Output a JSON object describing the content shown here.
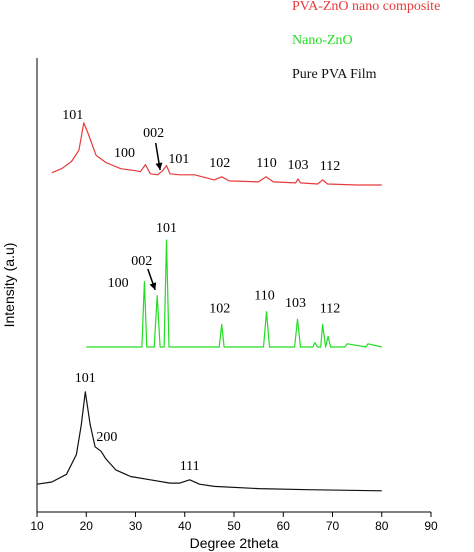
{
  "chart_data": {
    "type": "line",
    "xlabel": "Degree 2theta",
    "ylabel": "Intensity (a.u)",
    "xlim": [
      10,
      90
    ],
    "xticks": [
      "10",
      "20",
      "30",
      "40",
      "50",
      "60",
      "70",
      "80",
      "90"
    ],
    "grid": false,
    "legend_position": "top-right",
    "series": [
      {
        "name": "PVA-ZnO nano composite",
        "color": "#e83a3a",
        "x": [
          13,
          15,
          17,
          18.5,
          19.5,
          20.5,
          22,
          24,
          27,
          30,
          31,
          32,
          33,
          34.5,
          35.5,
          36.3,
          37,
          39,
          42,
          46,
          47.5,
          49,
          55,
          56.5,
          58,
          62.5,
          63,
          63.5,
          67,
          68,
          69,
          75,
          80
        ],
        "y": [
          0.13,
          0.17,
          0.24,
          0.35,
          0.62,
          0.5,
          0.3,
          0.23,
          0.17,
          0.15,
          0.14,
          0.21,
          0.12,
          0.11,
          0.15,
          0.2,
          0.12,
          0.11,
          0.11,
          0.06,
          0.09,
          0.05,
          0.04,
          0.09,
          0.04,
          0.03,
          0.07,
          0.03,
          0.02,
          0.06,
          0.02,
          0.01,
          0.01
        ]
      },
      {
        "name": "Nano-ZnO",
        "color": "#22dd22",
        "x": [
          20,
          30,
          31.3,
          31.8,
          32.3,
          33.8,
          34.4,
          35,
          35.8,
          36.3,
          36.8,
          47,
          47.5,
          48,
          56,
          56.6,
          57.2,
          62.3,
          62.9,
          63.5,
          66,
          66.4,
          67,
          67.6,
          68,
          68.6,
          69.1,
          69.6,
          72.5,
          73,
          76.8,
          77.2,
          80
        ],
        "y": [
          0.0,
          0.0,
          0.0,
          0.61,
          0.0,
          0.0,
          0.48,
          0.0,
          0.0,
          1.0,
          0.0,
          0.0,
          0.21,
          0.0,
          0.0,
          0.33,
          0.0,
          0.0,
          0.26,
          0.0,
          0.0,
          0.04,
          0.0,
          0.0,
          0.21,
          0.0,
          0.1,
          0.0,
          0.0,
          0.03,
          0.0,
          0.03,
          0.0
        ]
      },
      {
        "name": "Pure PVA Film",
        "color": "#111111",
        "x": [
          10,
          13,
          16,
          18,
          19,
          19.8,
          20.8,
          21.8,
          23,
          24,
          26,
          29,
          33,
          37,
          39,
          41,
          43,
          46,
          55,
          65,
          80
        ],
        "y": [
          0.08,
          0.1,
          0.17,
          0.35,
          0.62,
          0.92,
          0.62,
          0.42,
          0.38,
          0.31,
          0.21,
          0.15,
          0.12,
          0.09,
          0.09,
          0.12,
          0.08,
          0.06,
          0.04,
          0.03,
          0.02
        ]
      }
    ],
    "annotations": [
      {
        "series": 0,
        "text": "101",
        "x": 19.5
      },
      {
        "series": 0,
        "text": "100",
        "x": 30.4
      },
      {
        "series": 0,
        "text": "002",
        "x": 34.5
      },
      {
        "series": 0,
        "text": "101",
        "x": 38.8
      },
      {
        "series": 0,
        "text": "102",
        "x": 47.5
      },
      {
        "series": 0,
        "text": "110",
        "x": 57
      },
      {
        "series": 0,
        "text": "103",
        "x": 63
      },
      {
        "series": 0,
        "text": "112",
        "x": 69.5
      },
      {
        "series": 1,
        "text": "101",
        "x": 36.3
      },
      {
        "series": 1,
        "text": "100",
        "x": 28.5
      },
      {
        "series": 1,
        "text": "002",
        "x": 32.9
      },
      {
        "series": 1,
        "text": "102",
        "x": 47.5
      },
      {
        "series": 1,
        "text": "110",
        "x": 56.6
      },
      {
        "series": 1,
        "text": "103",
        "x": 62.9
      },
      {
        "series": 1,
        "text": "112",
        "x": 69.5
      },
      {
        "series": 2,
        "text": "101",
        "x": 19.8
      },
      {
        "series": 2,
        "text": "200",
        "x": 25
      },
      {
        "series": 2,
        "text": "111",
        "x": 41
      }
    ]
  }
}
